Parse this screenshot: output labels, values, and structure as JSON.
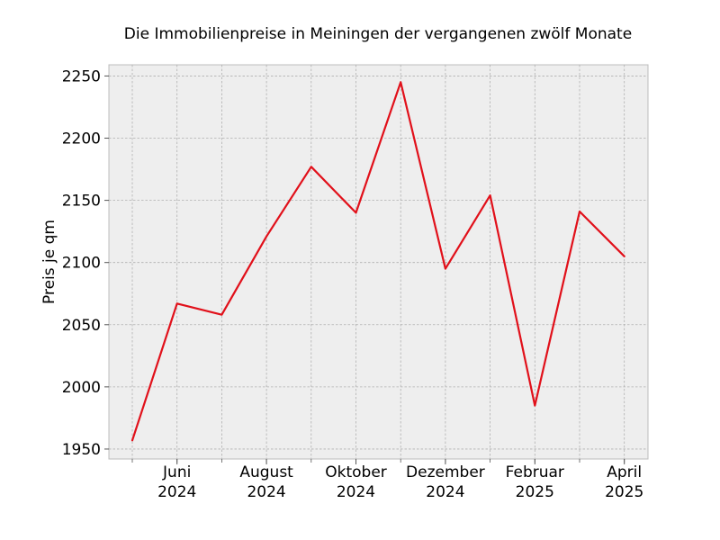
{
  "chart_data": {
    "type": "line",
    "title": "Die Immobilienpreise in Meiningen der vergangenen zwölf Monate",
    "xlabel": "",
    "ylabel": "Preis je qm",
    "x": [
      "2024-05",
      "2024-06",
      "2024-07",
      "2024-08",
      "2024-09",
      "2024-10",
      "2024-11",
      "2024-12",
      "2025-01",
      "2025-02",
      "2025-03",
      "2025-04"
    ],
    "series": [
      {
        "values": [
          1957,
          2067,
          2058,
          2121,
          2177,
          2140,
          2245,
          2095,
          2154,
          1985,
          2141,
          2105
        ],
        "color": "#e1101a"
      }
    ],
    "ylim": [
      1942,
      2259
    ],
    "yticks": [
      1950,
      2000,
      2050,
      2100,
      2150,
      2200,
      2250
    ],
    "xtick_labels": [
      {
        "x": "2024-06",
        "month": "Juni",
        "year": "2024"
      },
      {
        "x": "2024-08",
        "month": "August",
        "year": "2024"
      },
      {
        "x": "2024-10",
        "month": "Oktober",
        "year": "2024"
      },
      {
        "x": "2024-12",
        "month": "Dezember",
        "year": "2024"
      },
      {
        "x": "2025-02",
        "month": "Februar",
        "year": "2025"
      },
      {
        "x": "2025-04",
        "month": "April",
        "year": "2025"
      }
    ],
    "grid": true,
    "background": "#eeeeee",
    "grid_color": "#b0b0b0"
  }
}
